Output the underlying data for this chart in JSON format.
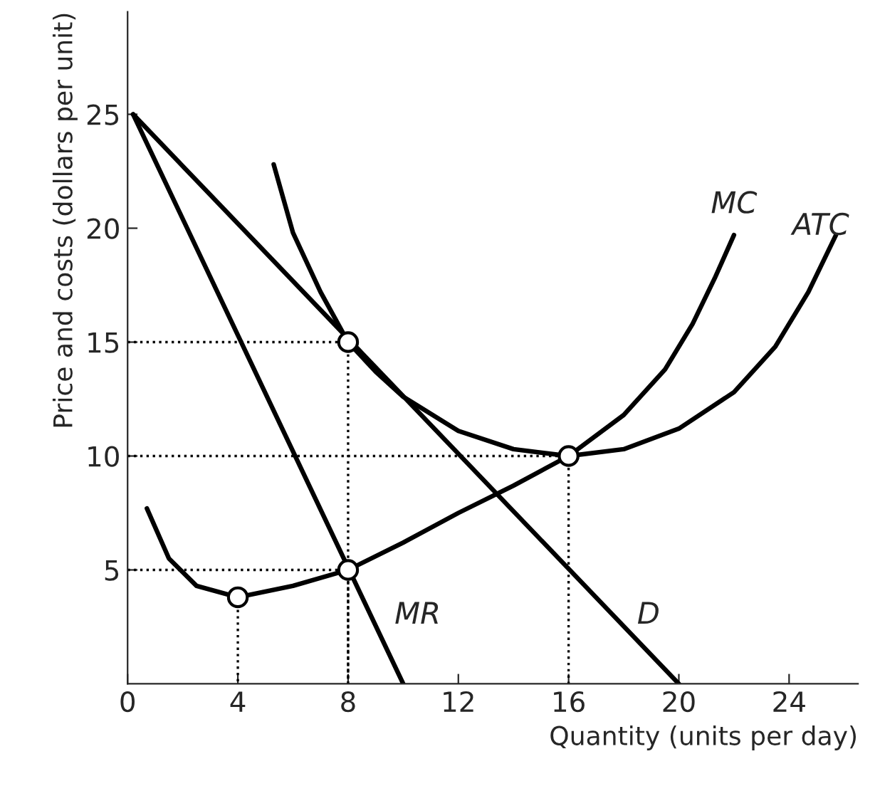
{
  "chart_data": {
    "type": "line",
    "xlabel": "Quantity (units per day)",
    "ylabel": "Price and costs (dollars per unit)",
    "xlim": [
      0,
      26.5
    ],
    "ylim": [
      0,
      29.5
    ],
    "xticks": [
      0,
      4,
      8,
      12,
      16,
      20,
      24
    ],
    "yticks": [
      5,
      10,
      15,
      20,
      25
    ],
    "grid": false,
    "legend": false,
    "marker": "none",
    "line_style": "solid",
    "series": [
      {
        "name": "D",
        "color": "#000000",
        "x": [
          0.2,
          20
        ],
        "values": [
          25,
          0
        ]
      },
      {
        "name": "MR",
        "color": "#000000",
        "x": [
          0.2,
          10
        ],
        "values": [
          25,
          0
        ]
      },
      {
        "name": "MC",
        "color": "#000000",
        "x": [
          0.7,
          1.5,
          2.5,
          4,
          6,
          8,
          10,
          12,
          14,
          16,
          18,
          19.5,
          20.5,
          21.3,
          22
        ],
        "values": [
          7.7,
          5.5,
          4.3,
          3.8,
          4.3,
          5,
          6.2,
          7.5,
          8.7,
          10,
          11.8,
          13.8,
          15.8,
          17.8,
          19.7
        ]
      },
      {
        "name": "ATC",
        "color": "#000000",
        "x": [
          5.3,
          6,
          7,
          8,
          9,
          10,
          12,
          14,
          16,
          18,
          20,
          22,
          23.5,
          24.7,
          25.7
        ],
        "values": [
          22.8,
          19.8,
          17.2,
          15,
          13.7,
          12.6,
          11.1,
          10.3,
          10,
          10.3,
          11.2,
          12.8,
          14.8,
          17.2,
          19.7
        ]
      },
      {
        "color": "#000000",
        "line_style": "dotted",
        "x": [
          0,
          8,
          8
        ],
        "values": [
          15,
          15,
          0
        ]
      },
      {
        "color": "#000000",
        "line_style": "dotted",
        "x": [
          0,
          8,
          8
        ],
        "values": [
          5,
          5,
          0
        ]
      },
      {
        "color": "#000000",
        "line_style": "dotted",
        "x": [
          0,
          16,
          16
        ],
        "values": [
          10,
          10,
          0
        ]
      },
      {
        "color": "#000000",
        "line_style": "dotted",
        "x": [
          4,
          4
        ],
        "values": [
          3.8,
          0
        ]
      },
      {
        "type": "scatter",
        "color": "#000000",
        "marker": "circle",
        "x": [
          4,
          8,
          8,
          16
        ],
        "values": [
          3.8,
          15,
          5,
          10
        ]
      }
    ]
  }
}
